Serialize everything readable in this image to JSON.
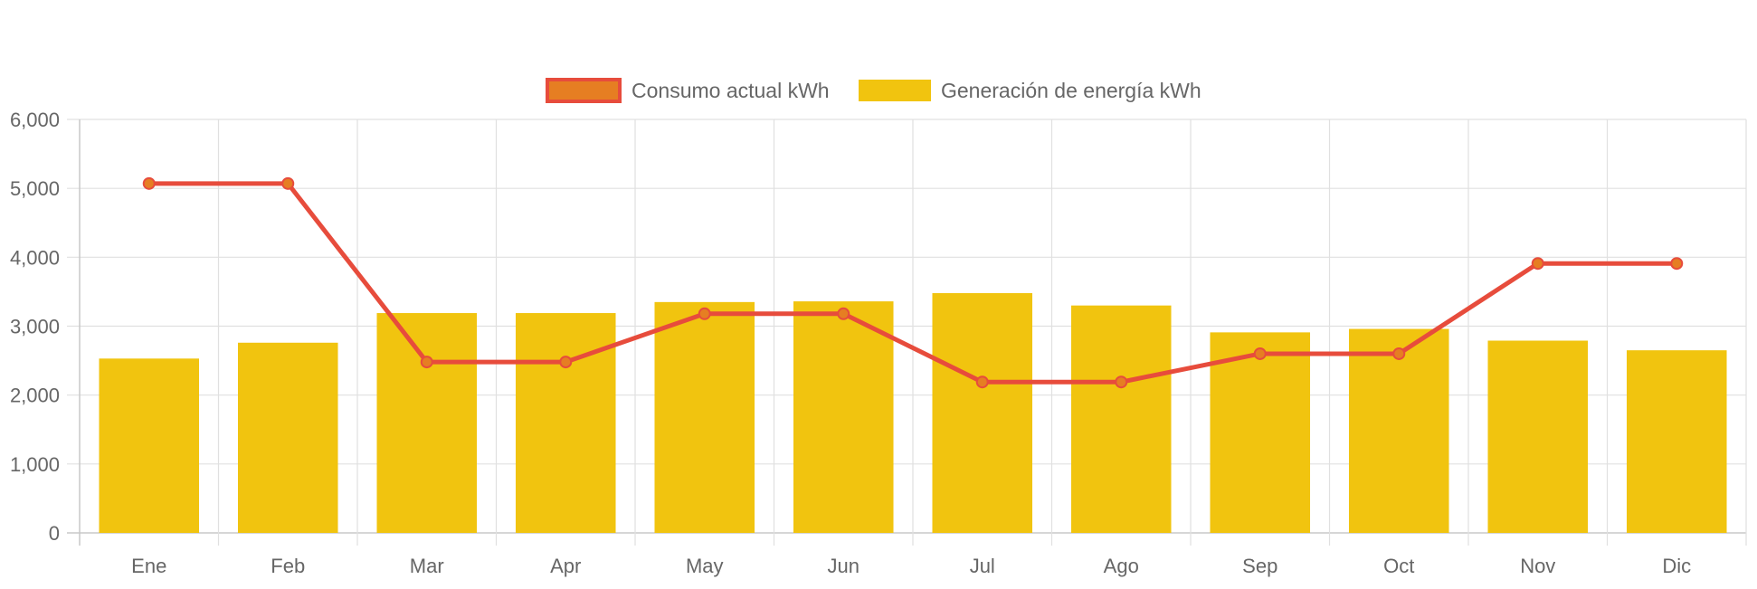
{
  "chart_data": {
    "type": "bar",
    "categories": [
      "Ene",
      "Feb",
      "Mar",
      "Apr",
      "May",
      "Jun",
      "Jul",
      "Ago",
      "Sep",
      "Oct",
      "Nov",
      "Dic"
    ],
    "ylim": [
      0,
      6000
    ],
    "y_ticks": [
      "0",
      "1,000",
      "2,000",
      "3,000",
      "4,000",
      "5,000",
      "6,000"
    ],
    "y_tick_values": [
      0,
      1000,
      2000,
      3000,
      4000,
      5000,
      6000
    ],
    "grid": true,
    "legend_position": "top",
    "series": [
      {
        "name": "Consumo actual kWh",
        "kind": "line",
        "values": [
          5070,
          5070,
          2480,
          2480,
          3180,
          3180,
          2190,
          2190,
          2600,
          2600,
          3910,
          3910
        ],
        "color": "#e74c3c",
        "point_fill": "#e67e22"
      },
      {
        "name": "Generación de energía kWh",
        "kind": "bar",
        "values": [
          2530,
          2760,
          3190,
          3190,
          3350,
          3360,
          3480,
          3300,
          2910,
          2960,
          2790,
          2650
        ],
        "color": "#f1c40f"
      }
    ]
  }
}
